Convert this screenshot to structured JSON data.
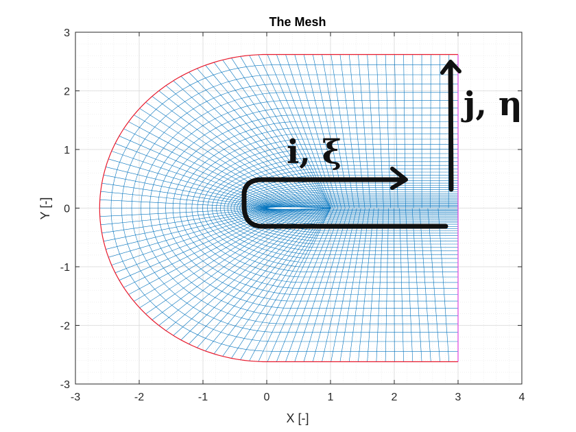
{
  "chart_data": {
    "type": "line",
    "title": "The Mesh",
    "xlabel": "X [-]",
    "ylabel": "Y [-]",
    "xlim": [
      -3,
      4
    ],
    "ylim": [
      -3,
      3
    ],
    "xticks": [
      "-3",
      "-2",
      "-1",
      "0",
      "1",
      "2",
      "3",
      "4"
    ],
    "yticks": [
      "-3",
      "-2",
      "-1",
      "0",
      "1",
      "2",
      "3"
    ],
    "grid": true,
    "minor_grid": true,
    "mesh": {
      "description_type": "C-grid",
      "airfoil_chord": [
        0,
        1
      ],
      "outer_radius": 2.62,
      "outlet_x": 3,
      "outer_y": [
        -2.62,
        2.62
      ],
      "outer_boundary_color": "#e8192c",
      "outlet_boundary_color": "#e040e0",
      "mesh_color": "#0072bd"
    },
    "annotations": [
      {
        "text": "i, ξ",
        "direction": "along airfoil / wake (i-index)"
      },
      {
        "text": "j, η",
        "direction": "normal outward (j-index)"
      }
    ]
  }
}
